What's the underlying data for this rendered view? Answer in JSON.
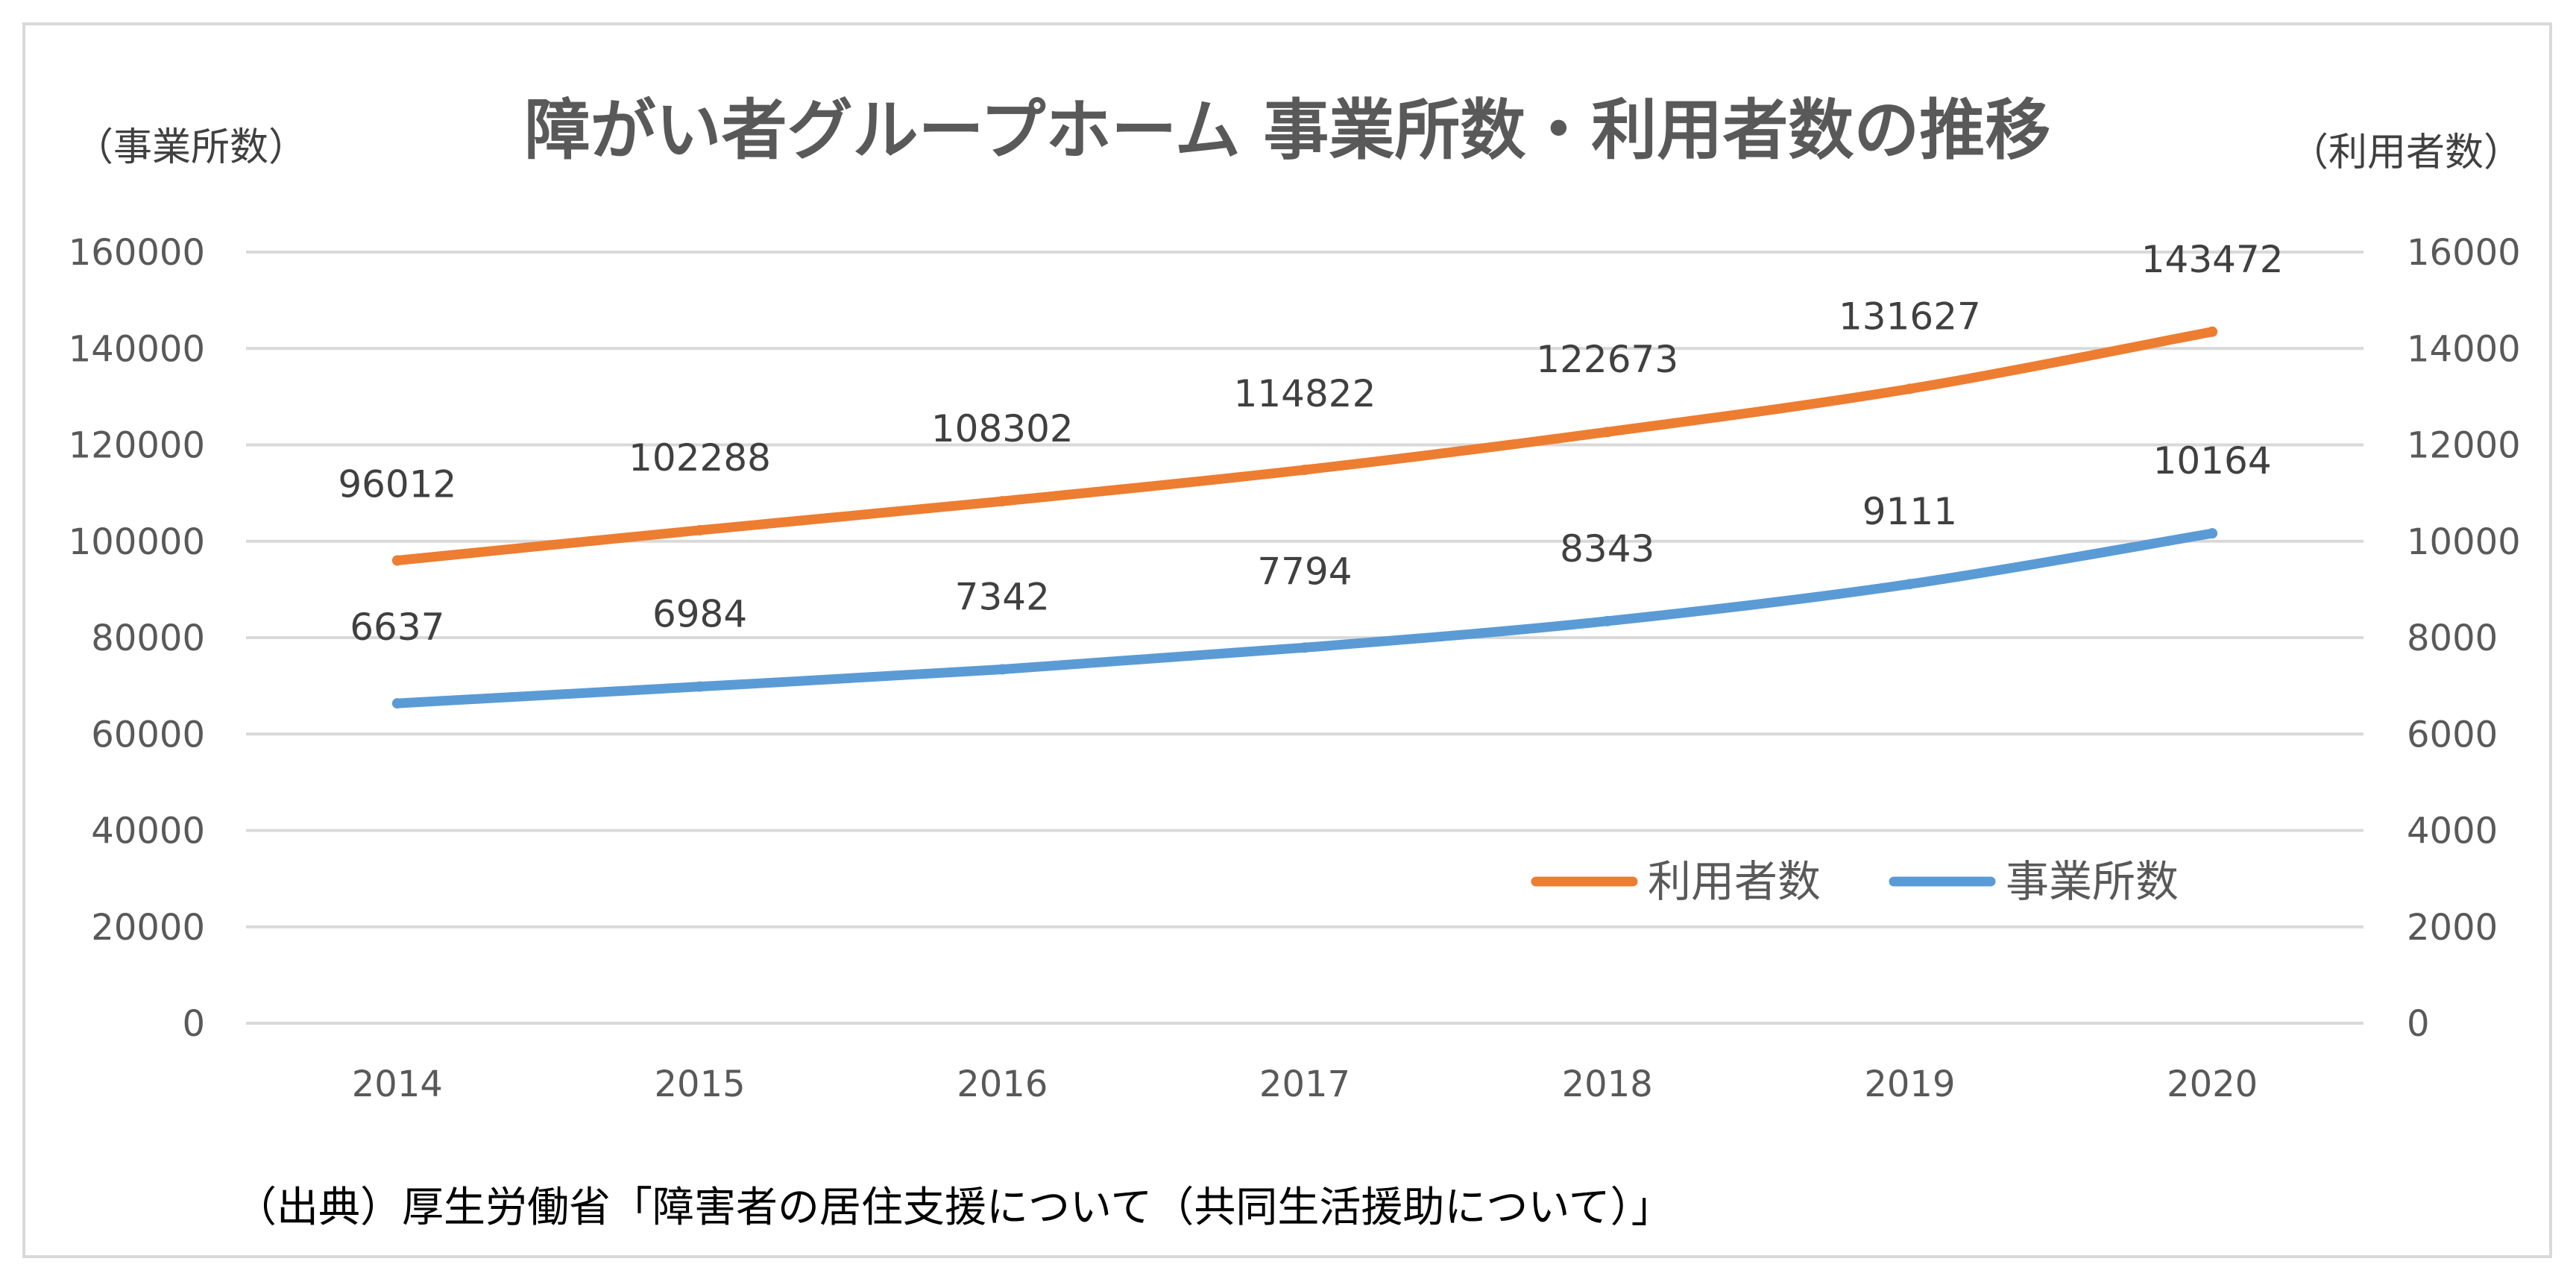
{
  "chart_data": {
    "type": "line",
    "title": "障がい者グループホーム 事業所数・利用者数の推移",
    "x": [
      "2014",
      "2015",
      "2016",
      "2017",
      "2018",
      "2019",
      "2020"
    ],
    "y_left": {
      "label": "（事業所数）",
      "ticks": [
        "0",
        "20000",
        "40000",
        "60000",
        "80000",
        "100000",
        "120000",
        "140000",
        "160000"
      ],
      "range": [
        0,
        160000
      ]
    },
    "y_right": {
      "label": "（利用者数）",
      "ticks": [
        "0",
        "2000",
        "4000",
        "6000",
        "8000",
        "10000",
        "12000",
        "14000",
        "16000"
      ],
      "range": [
        0,
        16000
      ]
    },
    "grid": true,
    "legend_position": "bottom-right",
    "series": [
      {
        "name": "利用者数",
        "axis": "left",
        "color": "#ed7d31",
        "values": [
          96012,
          102288,
          108302,
          114822,
          122673,
          131627,
          143472
        ],
        "labels": [
          "96012",
          "102288",
          "108302",
          "114822",
          "122673",
          "131627",
          "143472"
        ]
      },
      {
        "name": "事業所数",
        "axis": "right",
        "color": "#5b9bd5",
        "values": [
          6637,
          6984,
          7342,
          7794,
          8343,
          9111,
          10164
        ],
        "labels": [
          "6637",
          "6984",
          "7342",
          "7794",
          "8343",
          "9111",
          "10164"
        ]
      }
    ],
    "source": "（出典）厚生労働省「障害者の居住支援について（共同生活援助について）」"
  },
  "colors": {
    "grid": "#d9d9d9",
    "frame": "#d9d9d9",
    "text": "#595959"
  }
}
